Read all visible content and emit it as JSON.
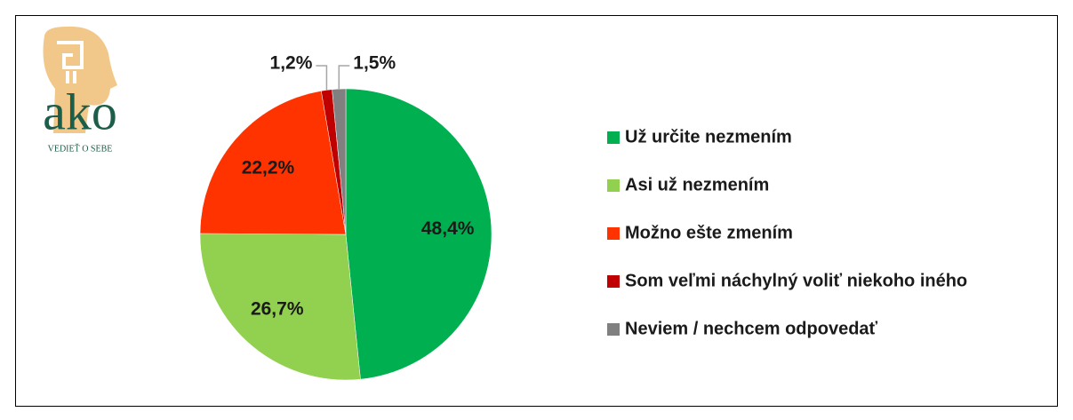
{
  "logo": {
    "name": "ako",
    "tagline": "VEDIEŤ O SEBE"
  },
  "chart_data": {
    "type": "pie",
    "categories": [
      "Už určite nezmením",
      "Asi už nezmením",
      "Možno ešte zmením",
      "Som veľmi náchylný voliť niekoho iného",
      "Neviem / nechcem odpovedať"
    ],
    "values": [
      48.4,
      26.7,
      22.2,
      1.2,
      1.5
    ],
    "value_labels": [
      "48,4%",
      "26,7%",
      "22,2%",
      "1,2%",
      "1,5%"
    ],
    "colors": [
      "#00b050",
      "#92d050",
      "#ff3300",
      "#c00000",
      "#808080"
    ],
    "legend": "right"
  }
}
